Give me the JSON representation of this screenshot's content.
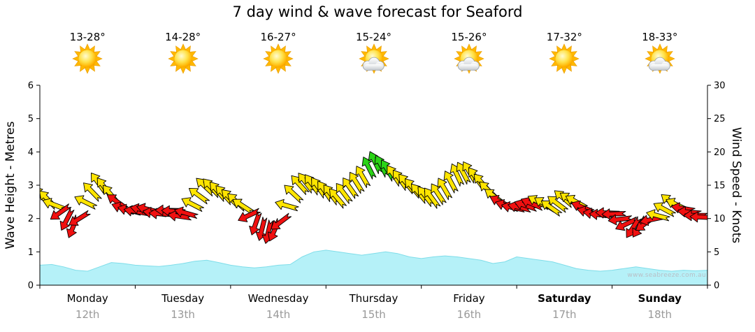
{
  "title": "7 day wind & wave forecast for Seaford",
  "watermark": "www.seabreeze.com.au",
  "days": [
    {
      "name": "Monday",
      "date": "12th",
      "temp": "13-28°",
      "icon": "sunny",
      "bold": false
    },
    {
      "name": "Tuesday",
      "date": "13th",
      "temp": "14-28°",
      "icon": "sunny",
      "bold": false
    },
    {
      "name": "Wednesday",
      "date": "14th",
      "temp": "16-27°",
      "icon": "sunny",
      "bold": false
    },
    {
      "name": "Thursday",
      "date": "15th",
      "temp": "15-24°",
      "icon": "partly-cloudy",
      "bold": false
    },
    {
      "name": "Friday",
      "date": "16th",
      "temp": "15-26°",
      "icon": "partly-cloudy",
      "bold": false
    },
    {
      "name": "Saturday",
      "date": "17th",
      "temp": "17-32°",
      "icon": "sunny",
      "bold": true
    },
    {
      "name": "Sunday",
      "date": "18th",
      "temp": "18-33°",
      "icon": "partly-cloudy",
      "bold": true
    }
  ],
  "axes": {
    "left_label": "Wave Height - Metres",
    "right_label": "Wind Speed - Knots",
    "left_ticks": [
      0,
      1,
      2,
      3,
      4,
      5,
      6
    ],
    "right_ticks": [
      0,
      5,
      10,
      15,
      20,
      25,
      30
    ]
  },
  "colors": {
    "wind_yellow": "#FFE500",
    "wind_red": "#F01010",
    "wind_green": "#2BD417",
    "wave_fill": "#B5F1F8",
    "wave_stroke": "#7FDDE9",
    "axis": "#000000",
    "date_gray": "#999999"
  },
  "chart_data": {
    "type": "line",
    "title": "7 day wind & wave forecast for Seaford",
    "x_categories": [
      "Monday 12th",
      "Tuesday 13th",
      "Wednesday 14th",
      "Thursday 15th",
      "Friday 16th",
      "Saturday 17th",
      "Sunday 18th"
    ],
    "points_per_day": 8,
    "left_ylabel": "Wave Height - Metres",
    "right_ylabel": "Wind Speed - Knots",
    "left_ylim": [
      0,
      6
    ],
    "right_ylim": [
      0,
      30
    ],
    "grid": false,
    "series": [
      {
        "name": "Wind Speed",
        "axis": "right",
        "render": "wind-arrows",
        "units": "knots",
        "values": [
          13.5,
          12.5,
          10.5,
          8.5,
          13,
          15.5,
          13.5,
          11.5,
          11,
          11.5,
          10.5,
          11.5,
          10,
          12.5,
          15,
          14,
          13,
          12,
          9.5,
          8,
          8.5,
          13,
          15.5,
          15,
          14,
          13,
          14.5,
          16,
          18.5,
          17.5,
          16,
          15,
          13.5,
          13,
          14.5,
          16.5,
          17,
          15.5,
          13.5,
          12,
          11.5,
          12,
          12.5,
          11.5,
          13,
          12.5,
          11,
          10.5,
          11,
          9.5,
          8.5,
          9.5,
          10.5,
          12.5,
          11.5,
          10.5,
          10
        ],
        "colors": [
          "y",
          "y",
          "r",
          "r",
          "y",
          "y",
          "y",
          "r",
          "r",
          "r",
          "r",
          "r",
          "r",
          "y",
          "y",
          "y",
          "y",
          "y",
          "r",
          "r",
          "r",
          "y",
          "y",
          "y",
          "y",
          "y",
          "y",
          "y",
          "g",
          "g",
          "y",
          "y",
          "y",
          "y",
          "y",
          "y",
          "y",
          "y",
          "y",
          "r",
          "r",
          "r",
          "y",
          "y",
          "y",
          "y",
          "r",
          "r",
          "r",
          "r",
          "r",
          "r",
          "y",
          "y",
          "r",
          "r",
          "r"
        ],
        "directions_deg": [
          -40,
          -45,
          -150,
          -160,
          -50,
          -35,
          -40,
          -70,
          -80,
          -75,
          -85,
          -90,
          -80,
          -60,
          -45,
          -40,
          -45,
          -50,
          -160,
          -170,
          -150,
          -50,
          -40,
          -35,
          -35,
          -40,
          -35,
          -30,
          -25,
          -30,
          -35,
          -40,
          -40,
          -35,
          -30,
          -25,
          -30,
          -40,
          -50,
          -70,
          -80,
          -70,
          -60,
          -55,
          -50,
          -60,
          -75,
          -85,
          -90,
          -100,
          -160,
          -120,
          -70,
          -50,
          -80,
          -90,
          -85
        ]
      },
      {
        "name": "Wave Height",
        "axis": "left",
        "render": "area",
        "units": "m",
        "values": [
          0.6,
          0.62,
          0.55,
          0.45,
          0.42,
          0.55,
          0.68,
          0.65,
          0.6,
          0.58,
          0.56,
          0.6,
          0.65,
          0.72,
          0.75,
          0.68,
          0.6,
          0.55,
          0.52,
          0.55,
          0.6,
          0.62,
          0.85,
          1.0,
          1.05,
          1.0,
          0.95,
          0.9,
          0.95,
          1.0,
          0.95,
          0.85,
          0.8,
          0.85,
          0.88,
          0.85,
          0.8,
          0.75,
          0.65,
          0.7,
          0.85,
          0.8,
          0.75,
          0.7,
          0.6,
          0.5,
          0.45,
          0.42,
          0.45,
          0.5,
          0.55,
          0.5,
          0.45,
          0.42,
          0.45,
          0.43,
          0.45
        ]
      }
    ]
  }
}
